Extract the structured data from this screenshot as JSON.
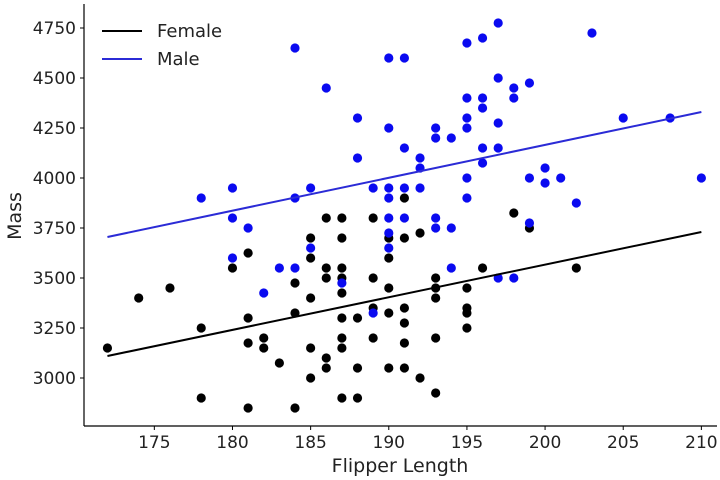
{
  "chart_data": {
    "type": "scatter",
    "title": "",
    "xlabel": "Flipper Length",
    "ylabel": "Mass",
    "xlim": [
      170.5,
      211
    ],
    "ylim": [
      2760,
      4870
    ],
    "xticks": [
      175,
      180,
      185,
      190,
      195,
      200,
      205,
      210
    ],
    "yticks": [
      3000,
      3250,
      3500,
      3750,
      4000,
      4250,
      4500,
      4750
    ],
    "grid": false,
    "legend_position": "top-left",
    "series": [
      {
        "name": "Female",
        "line_color": "#000000",
        "point_color": "#000000",
        "fit": {
          "x": [
            172,
            210
          ],
          "y": [
            3110,
            3730
          ]
        },
        "points": [
          [
            172,
            3150
          ],
          [
            174,
            3400
          ],
          [
            176,
            3450
          ],
          [
            178,
            3250
          ],
          [
            178,
            2900
          ],
          [
            180,
            3550
          ],
          [
            181,
            3625
          ],
          [
            181,
            3300
          ],
          [
            181,
            3175
          ],
          [
            181,
            2850
          ],
          [
            182,
            3200
          ],
          [
            182,
            3150
          ],
          [
            183,
            3075
          ],
          [
            184,
            3475
          ],
          [
            184,
            3325
          ],
          [
            184,
            2850
          ],
          [
            185,
            3700
          ],
          [
            185,
            3600
          ],
          [
            185,
            3400
          ],
          [
            185,
            3150
          ],
          [
            185,
            3000
          ],
          [
            186,
            3800
          ],
          [
            186,
            3550
          ],
          [
            186,
            3500
          ],
          [
            186,
            3100
          ],
          [
            186,
            3050
          ],
          [
            187,
            3800
          ],
          [
            187,
            3700
          ],
          [
            187,
            3550
          ],
          [
            187,
            3500
          ],
          [
            187,
            3425
          ],
          [
            187,
            3300
          ],
          [
            187,
            3200
          ],
          [
            187,
            3150
          ],
          [
            187,
            2900
          ],
          [
            188,
            3300
          ],
          [
            188,
            3050
          ],
          [
            188,
            2900
          ],
          [
            189,
            3800
          ],
          [
            189,
            3500
          ],
          [
            189,
            3350
          ],
          [
            189,
            3200
          ],
          [
            190,
            3700
          ],
          [
            190,
            3600
          ],
          [
            190,
            3450
          ],
          [
            190,
            3325
          ],
          [
            190,
            3050
          ],
          [
            191,
            3900
          ],
          [
            191,
            3700
          ],
          [
            191,
            3350
          ],
          [
            191,
            3275
          ],
          [
            191,
            3175
          ],
          [
            191,
            3050
          ],
          [
            192,
            3725
          ],
          [
            192,
            3000
          ],
          [
            193,
            3500
          ],
          [
            193,
            3450
          ],
          [
            193,
            3400
          ],
          [
            193,
            3200
          ],
          [
            193,
            2925
          ],
          [
            195,
            3450
          ],
          [
            195,
            3350
          ],
          [
            195,
            3325
          ],
          [
            195,
            3250
          ],
          [
            196,
            3550
          ],
          [
            198,
            3825
          ],
          [
            199,
            3750
          ],
          [
            202,
            3550
          ]
        ]
      },
      {
        "name": "Male",
        "line_color": "#2b2bd6",
        "point_color": "#0a0af0",
        "fit": {
          "x": [
            172,
            210
          ],
          "y": [
            3705,
            4330
          ]
        },
        "points": [
          [
            178,
            3900
          ],
          [
            180,
            3950
          ],
          [
            180,
            3800
          ],
          [
            180,
            3600
          ],
          [
            181,
            3750
          ],
          [
            182,
            3425
          ],
          [
            183,
            3550
          ],
          [
            184,
            4650
          ],
          [
            184,
            3900
          ],
          [
            184,
            3550
          ],
          [
            185,
            3950
          ],
          [
            185,
            3650
          ],
          [
            186,
            4450
          ],
          [
            187,
            3475
          ],
          [
            188,
            4300
          ],
          [
            188,
            4100
          ],
          [
            189,
            3950
          ],
          [
            189,
            3325
          ],
          [
            190,
            4600
          ],
          [
            190,
            4250
          ],
          [
            190,
            3950
          ],
          [
            190,
            3900
          ],
          [
            190,
            3800
          ],
          [
            190,
            3725
          ],
          [
            190,
            3650
          ],
          [
            191,
            4600
          ],
          [
            191,
            4150
          ],
          [
            191,
            3950
          ],
          [
            191,
            3800
          ],
          [
            192,
            4100
          ],
          [
            192,
            4050
          ],
          [
            192,
            3950
          ],
          [
            193,
            4250
          ],
          [
            193,
            4200
          ],
          [
            193,
            3800
          ],
          [
            193,
            3750
          ],
          [
            194,
            4200
          ],
          [
            194,
            3750
          ],
          [
            194,
            3550
          ],
          [
            195,
            4675
          ],
          [
            195,
            4400
          ],
          [
            195,
            4300
          ],
          [
            195,
            4250
          ],
          [
            195,
            4000
          ],
          [
            195,
            3900
          ],
          [
            196,
            4700
          ],
          [
            196,
            4400
          ],
          [
            196,
            4350
          ],
          [
            196,
            4150
          ],
          [
            196,
            4075
          ],
          [
            197,
            4775
          ],
          [
            197,
            4500
          ],
          [
            197,
            4275
          ],
          [
            197,
            4150
          ],
          [
            197,
            3500
          ],
          [
            198,
            4450
          ],
          [
            198,
            4400
          ],
          [
            198,
            3500
          ],
          [
            199,
            4475
          ],
          [
            199,
            4000
          ],
          [
            199,
            3775
          ],
          [
            200,
            4050
          ],
          [
            200,
            3975
          ],
          [
            201,
            4000
          ],
          [
            202,
            3875
          ],
          [
            203,
            4725
          ],
          [
            205,
            4300
          ],
          [
            208,
            4300
          ],
          [
            210,
            4000
          ]
        ]
      }
    ]
  }
}
